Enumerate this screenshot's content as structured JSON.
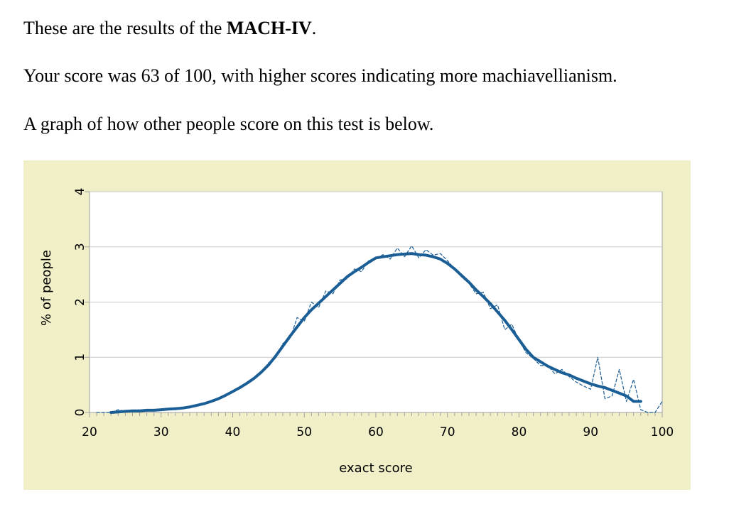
{
  "text": {
    "line1_prefix": "These are the results of the ",
    "line1_bold": "MACH-IV",
    "line1_suffix": ".",
    "line2": "Your score was 63 of 100, with higher scores indicating more machiavellianism.",
    "line3": "A graph of how other people score on this test is below."
  },
  "colors": {
    "panel_background": "#F0EFC8",
    "plot_background": "#FFFFFF",
    "gridline": "#C8C8C8",
    "axis": "#A0A0A0",
    "series": "#1B5E96"
  },
  "chart_data": {
    "type": "line",
    "xlabel": "exact score",
    "ylabel": "% of people",
    "xlim": [
      20,
      100
    ],
    "ylim": [
      0,
      4
    ],
    "x_ticks": [
      20,
      30,
      40,
      50,
      60,
      70,
      80,
      90,
      100
    ],
    "y_ticks": [
      0,
      1,
      2,
      3,
      4
    ],
    "grid": "horizontal",
    "series": [
      {
        "style": "solid",
        "x": [
          23,
          24,
          25,
          26,
          27,
          28,
          29,
          30,
          31,
          32,
          33,
          34,
          35,
          36,
          37,
          38,
          39,
          40,
          41,
          42,
          43,
          44,
          45,
          46,
          47,
          48,
          49,
          50,
          51,
          52,
          53,
          54,
          55,
          56,
          57,
          58,
          59,
          60,
          61,
          62,
          63,
          64,
          65,
          66,
          67,
          68,
          69,
          70,
          71,
          72,
          73,
          74,
          75,
          76,
          77,
          78,
          79,
          80,
          81,
          82,
          83,
          84,
          85,
          86,
          87,
          88,
          89,
          90,
          91,
          92,
          93,
          94,
          95,
          96,
          97
        ],
        "y": [
          0.0,
          0.01,
          0.02,
          0.03,
          0.03,
          0.04,
          0.04,
          0.05,
          0.06,
          0.07,
          0.08,
          0.1,
          0.13,
          0.16,
          0.2,
          0.25,
          0.31,
          0.38,
          0.45,
          0.53,
          0.62,
          0.73,
          0.86,
          1.02,
          1.2,
          1.38,
          1.55,
          1.72,
          1.86,
          1.98,
          2.1,
          2.22,
          2.34,
          2.46,
          2.55,
          2.63,
          2.72,
          2.8,
          2.82,
          2.84,
          2.86,
          2.87,
          2.88,
          2.86,
          2.85,
          2.82,
          2.78,
          2.7,
          2.6,
          2.48,
          2.36,
          2.22,
          2.1,
          1.97,
          1.82,
          1.67,
          1.5,
          1.32,
          1.14,
          1.0,
          0.92,
          0.84,
          0.78,
          0.72,
          0.68,
          0.62,
          0.57,
          0.52,
          0.48,
          0.45,
          0.4,
          0.35,
          0.3,
          0.2,
          0.2
        ]
      },
      {
        "style": "dashed",
        "x": [
          21,
          22,
          23,
          24,
          25,
          26,
          27,
          28,
          29,
          30,
          31,
          32,
          33,
          34,
          35,
          36,
          37,
          38,
          39,
          40,
          41,
          42,
          43,
          44,
          45,
          46,
          47,
          48,
          49,
          50,
          51,
          52,
          53,
          54,
          55,
          56,
          57,
          58,
          59,
          60,
          61,
          62,
          63,
          64,
          65,
          66,
          67,
          68,
          69,
          70,
          71,
          72,
          73,
          74,
          75,
          76,
          77,
          78,
          79,
          80,
          81,
          82,
          83,
          84,
          85,
          86,
          87,
          88,
          89,
          90,
          91,
          92,
          93,
          94,
          95,
          96,
          97,
          98,
          99,
          100
        ],
        "y": [
          0.0,
          0.0,
          0.0,
          0.05,
          0.02,
          0.03,
          0.05,
          0.02,
          0.06,
          0.04,
          0.07,
          0.05,
          0.1,
          0.08,
          0.14,
          0.15,
          0.22,
          0.24,
          0.33,
          0.37,
          0.47,
          0.52,
          0.64,
          0.72,
          0.9,
          0.98,
          1.25,
          1.33,
          1.72,
          1.65,
          2.0,
          1.9,
          2.2,
          2.15,
          2.4,
          2.42,
          2.6,
          2.55,
          2.75,
          2.78,
          2.86,
          2.78,
          2.98,
          2.82,
          3.02,
          2.8,
          2.95,
          2.85,
          2.88,
          2.75,
          2.6,
          2.45,
          2.34,
          2.15,
          2.18,
          1.88,
          1.95,
          1.5,
          1.6,
          1.3,
          1.08,
          0.98,
          0.85,
          0.85,
          0.7,
          0.78,
          0.65,
          0.55,
          0.48,
          0.42,
          1.0,
          0.25,
          0.3,
          0.78,
          0.2,
          0.6,
          0.05,
          0.0,
          0.0,
          0.2
        ]
      }
    ]
  }
}
